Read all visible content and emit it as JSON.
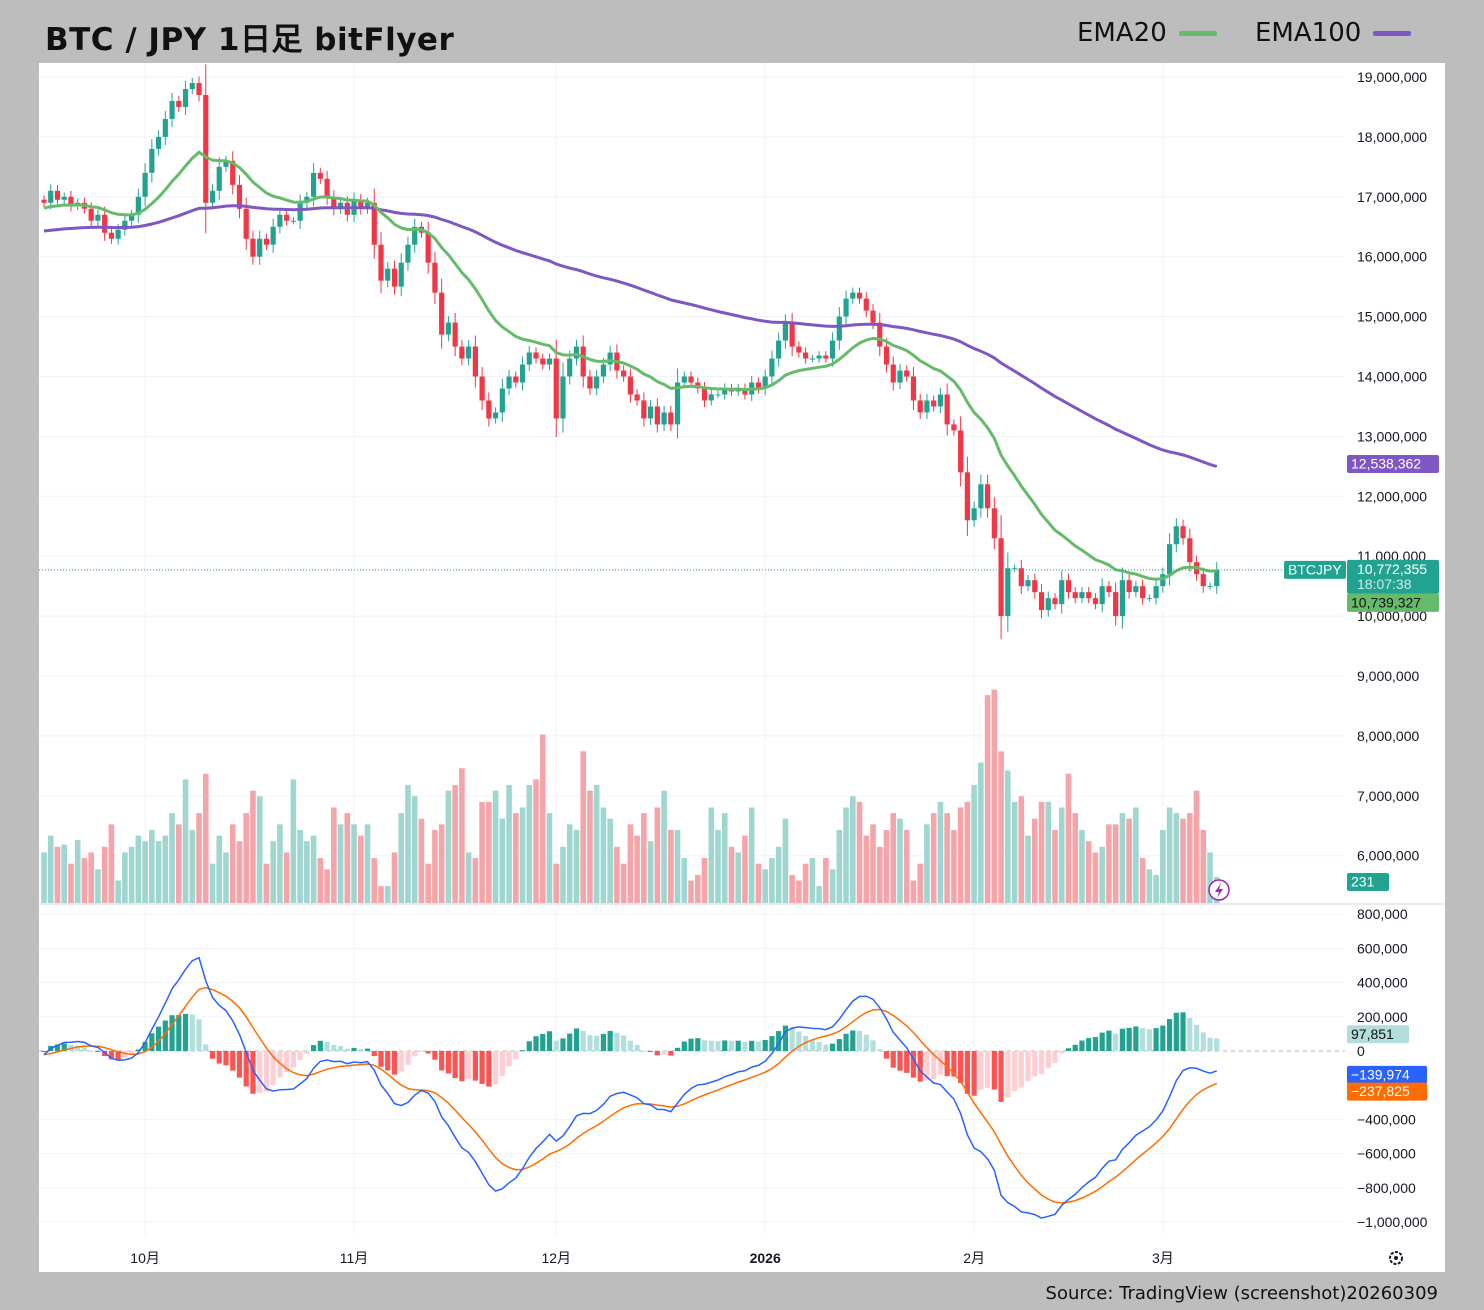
{
  "header": {
    "title": "BTC / JPY 1日足 bitFlyer",
    "legend": [
      {
        "label": "EMA20",
        "color": "#66bb6a"
      },
      {
        "label": "EMA100",
        "color": "#7e57c2"
      }
    ]
  },
  "footer": {
    "source": "Source: TradingView (screenshot)20260309"
  },
  "colors": {
    "up": "#22a392",
    "down": "#f23645",
    "vol_up": "#9fd6cf",
    "vol_down": "#f5a5a9",
    "ema20": "#66bb6a",
    "ema100": "#7e57c2",
    "macd": "#2962ff",
    "signal": "#ff6d00",
    "hist_up_strong": "#22a392",
    "hist_up_weak": "#b2dfdb",
    "hist_down_strong": "#ff5252",
    "hist_down_weak": "#ffcdd2"
  },
  "chart_data": {
    "type": "candlestick",
    "symbol": "BTCJPY",
    "start_date": "2025-09-16",
    "interval": "1D",
    "close": [
      16900000,
      17100000,
      16950000,
      17000000,
      16850000,
      16900000,
      16800000,
      16600000,
      16700000,
      16400000,
      16300000,
      16450000,
      16600000,
      16700000,
      17000000,
      17400000,
      17800000,
      18000000,
      18300000,
      18600000,
      18500000,
      18800000,
      18900000,
      18700000,
      16900000,
      17100000,
      17500000,
      17600000,
      17200000,
      16800000,
      16300000,
      16000000,
      16300000,
      16200000,
      16500000,
      16700000,
      16600000,
      16600000,
      16900000,
      17000000,
      17400000,
      17300000,
      17000000,
      16800000,
      16900000,
      16700000,
      16950000,
      16800000,
      16900000,
      16200000,
      15600000,
      15800000,
      15500000,
      15900000,
      16200000,
      16500000,
      16400000,
      15900000,
      15400000,
      14700000,
      14900000,
      14500000,
      14300000,
      14500000,
      14000000,
      13600000,
      13300000,
      13400000,
      13800000,
      14000000,
      13900000,
      14200000,
      14400000,
      14300000,
      14200000,
      14300000,
      13300000,
      14000000,
      14300000,
      14500000,
      14000000,
      13800000,
      14000000,
      14200000,
      14400000,
      14100000,
      14000000,
      13700000,
      13600000,
      13300000,
      13500000,
      13200000,
      13400000,
      13200000,
      13900000,
      14000000,
      13900000,
      13800000,
      13600000,
      13700000,
      13700000,
      13800000,
      13750000,
      13800000,
      13700000,
      13900000,
      13800000,
      14000000,
      14300000,
      14600000,
      14900000,
      14500000,
      14400000,
      14300000,
      14300000,
      14350000,
      14300000,
      14600000,
      15000000,
      15300000,
      15400000,
      15300000,
      15100000,
      14900000,
      14500000,
      14200000,
      13900000,
      14100000,
      14000000,
      13600000,
      13400000,
      13600000,
      13500000,
      13700000,
      13200000,
      13100000,
      12400000,
      11600000,
      11800000,
      12200000,
      11800000,
      11300000,
      10000000,
      10800000,
      10800000,
      10500000,
      10600000,
      10400000,
      10100000,
      10300000,
      10200000,
      10600000,
      10400000,
      10300000,
      10400000,
      10300000,
      10200000,
      10500000,
      10400000,
      10000000,
      10600000,
      10400000,
      10500000,
      10300000,
      10300000,
      10500000,
      10700000,
      11200000,
      11500000,
      11300000,
      10900000,
      10700000,
      10500000,
      10500000,
      10772355
    ],
    "volume": [
      450,
      600,
      500,
      520,
      350,
      560,
      400,
      450,
      300,
      500,
      700,
      200,
      450,
      500,
      600,
      550,
      650,
      550,
      600,
      800,
      700,
      1100,
      650,
      800,
      1150,
      350,
      600,
      450,
      700,
      550,
      800,
      1000,
      950,
      350,
      550,
      700,
      450,
      1100,
      650,
      550,
      600,
      400,
      300,
      850,
      700,
      800,
      700,
      600,
      700,
      400,
      150,
      150,
      450,
      800,
      1050,
      950,
      750,
      350,
      650,
      700,
      1000,
      1050,
      1200,
      450,
      400,
      900,
      900,
      1000,
      750,
      1050,
      800,
      850,
      1050,
      1100,
      1500,
      800,
      350,
      500,
      700,
      650,
      1350,
      1000,
      1050,
      850,
      750,
      500,
      350,
      700,
      600,
      800,
      550,
      850,
      1000,
      650,
      650,
      400,
      200,
      250,
      400,
      850,
      650,
      800,
      500,
      450,
      600,
      850,
      350,
      300,
      400,
      500,
      750,
      250,
      200,
      350,
      400,
      150,
      400,
      300,
      650,
      850,
      950,
      900,
      600,
      700,
      500,
      650,
      800,
      750,
      650,
      200,
      350,
      700,
      800,
      900,
      800,
      650,
      850,
      900,
      1050,
      1250,
      1850,
      1900,
      1350,
      1180,
      900,
      950,
      600,
      750,
      900,
      900,
      650,
      850,
      1150,
      800,
      650,
      550,
      450,
      500,
      700,
      700,
      800,
      750,
      850,
      400,
      300,
      250,
      650,
      850,
      800,
      750,
      800,
      1000,
      650,
      450,
      231
    ],
    "ema20_start": 16800000,
    "ema100_start": 16420000,
    "price_axis": {
      "ylim": [
        5700000,
        19200000
      ],
      "ticks": [
        {
          "v": 19000000,
          "label": "19,000,000"
        },
        {
          "v": 18000000,
          "label": "18,000,000"
        },
        {
          "v": 17000000,
          "label": "17,000,000"
        },
        {
          "v": 16000000,
          "label": "16,000,000"
        },
        {
          "v": 15000000,
          "label": "15,000,000"
        },
        {
          "v": 14000000,
          "label": "14,000,000"
        },
        {
          "v": 13000000,
          "label": "13,000,000"
        },
        {
          "v": 12000000,
          "label": "12,000,000"
        },
        {
          "v": 11000000,
          "label": "11,000,000"
        },
        {
          "v": 10000000,
          "label": "10,000,000"
        },
        {
          "v": 9000000,
          "label": "9,000,000"
        },
        {
          "v": 8000000,
          "label": "8,000,000"
        },
        {
          "v": 7000000,
          "label": "7,000,000"
        },
        {
          "v": 6000000,
          "label": "6,000,000"
        }
      ]
    },
    "macd_axis": {
      "ylim": [
        -1050000,
        880000
      ],
      "ticks": [
        {
          "v": 800000,
          "label": "800,000"
        },
        {
          "v": 600000,
          "label": "600,000"
        },
        {
          "v": 400000,
          "label": "400,000"
        },
        {
          "v": 200000,
          "label": "200,000"
        },
        {
          "v": 0,
          "label": "0"
        },
        {
          "v": -400000,
          "label": "−400,000"
        },
        {
          "v": -600000,
          "label": "−600,000"
        },
        {
          "v": -800000,
          "label": "−800,000"
        },
        {
          "v": -1000000,
          "label": "−1,000,000"
        }
      ]
    },
    "time_ticks": [
      {
        "date": "2025-10-01",
        "label": "10月"
      },
      {
        "date": "2025-11-01",
        "label": "11月"
      },
      {
        "date": "2025-12-01",
        "label": "12月"
      },
      {
        "date": "2026-01-01",
        "label": "2026",
        "bold": true
      },
      {
        "date": "2026-02-01",
        "label": "2月"
      },
      {
        "date": "2026-03-01",
        "label": "3月"
      }
    ],
    "labels": {
      "symbol_tag": "BTCJPY",
      "last_price": {
        "value": 10772355,
        "text": "10,772,355",
        "countdown": "18:07:38"
      },
      "ema20": {
        "value": 10739327,
        "text": "10,739,327"
      },
      "ema100": {
        "value": 12538362,
        "text": "12,538,362"
      },
      "volume": {
        "value": 231,
        "text": "231"
      },
      "histogram": {
        "value": 97851,
        "text": "97,851"
      },
      "macd": {
        "value": -139974,
        "text": "−139,974"
      },
      "signal": {
        "value": -237825,
        "text": "−237,825"
      }
    }
  }
}
